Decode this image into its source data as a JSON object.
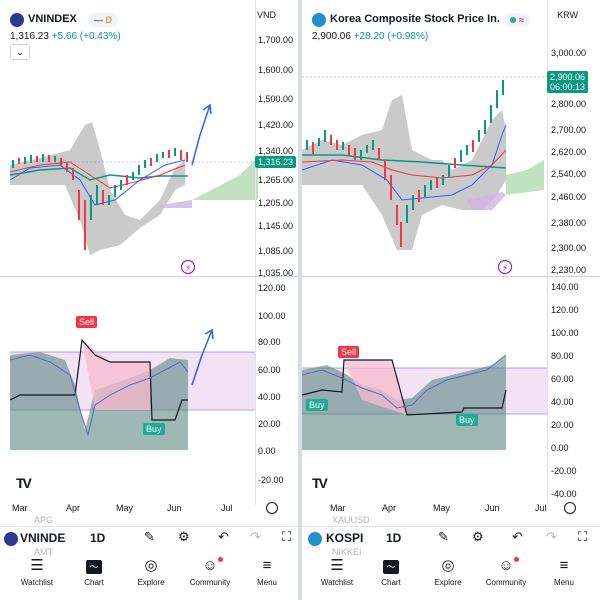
{
  "panels": [
    {
      "id": "left",
      "symbol": "VNINDEX",
      "badge_main": "—",
      "badge_letter": "D",
      "currency": "VND",
      "last": "1,316.23",
      "change": "+5.66 (+0.43%)",
      "price_tag": "1,316.23",
      "price_axis": [
        "1,700.00",
        "1,600.00",
        "1,500.00",
        "1,420.00",
        "1,340.00",
        "1,265.00",
        "1,205.00",
        "1,145.00",
        "1,085.00",
        "1,035.00"
      ],
      "osc_axis": [
        "120.00",
        "100.00",
        "80.00",
        "60.00",
        "40.00",
        "20.00",
        "0.00",
        "-20.00"
      ],
      "months": [
        "Mar",
        "Apr",
        "May",
        "Jun",
        "Jul"
      ],
      "sell_label": "Sell",
      "buy_labels": [
        "Buy"
      ],
      "toolbar_symbol": "VNINDE",
      "toolbar_interval": "1D",
      "ghost_texts": [
        "APG",
        "AMT"
      ]
    },
    {
      "id": "right",
      "symbol": "Korea Composite Stock Price In...",
      "badge_main": "",
      "badge_letter": "≈",
      "currency": "KRW",
      "last": "2,900.06",
      "change": "+28.20 (+0.98%)",
      "price_tag": "2,900.06",
      "price_tag_time": "06:00:13",
      "price_axis": [
        "3,000.00",
        "2,900.00",
        "2,800.00",
        "2,700.00",
        "2,620.00",
        "2,540.00",
        "2,460.00",
        "2,380.00",
        "2,300.00",
        "2,230.00"
      ],
      "osc_axis": [
        "140.00",
        "120.00",
        "100.00",
        "80.00",
        "60.00",
        "40.00",
        "20.00",
        "0.00",
        "-20.00",
        "-40.00"
      ],
      "months": [
        "Mar",
        "Apr",
        "May",
        "Jun",
        "Jul"
      ],
      "sell_label": "Sell",
      "buy_labels": [
        "Buy",
        "Buy"
      ],
      "toolbar_symbol": "KOSPI",
      "toolbar_interval": "1D",
      "ghost_texts": [
        "XAUUSD",
        "NIKKEI"
      ]
    }
  ],
  "nav": [
    "Watchlist",
    "Chart",
    "Explore",
    "Community",
    "Menu"
  ],
  "colors": {
    "up": "#089981",
    "down": "#f23645",
    "cloud_green": "#a5d6a7",
    "cloud_purple": "#d1b3e6",
    "band_gray": "#9e9e9e",
    "arrow_blue": "#2962ff"
  }
}
